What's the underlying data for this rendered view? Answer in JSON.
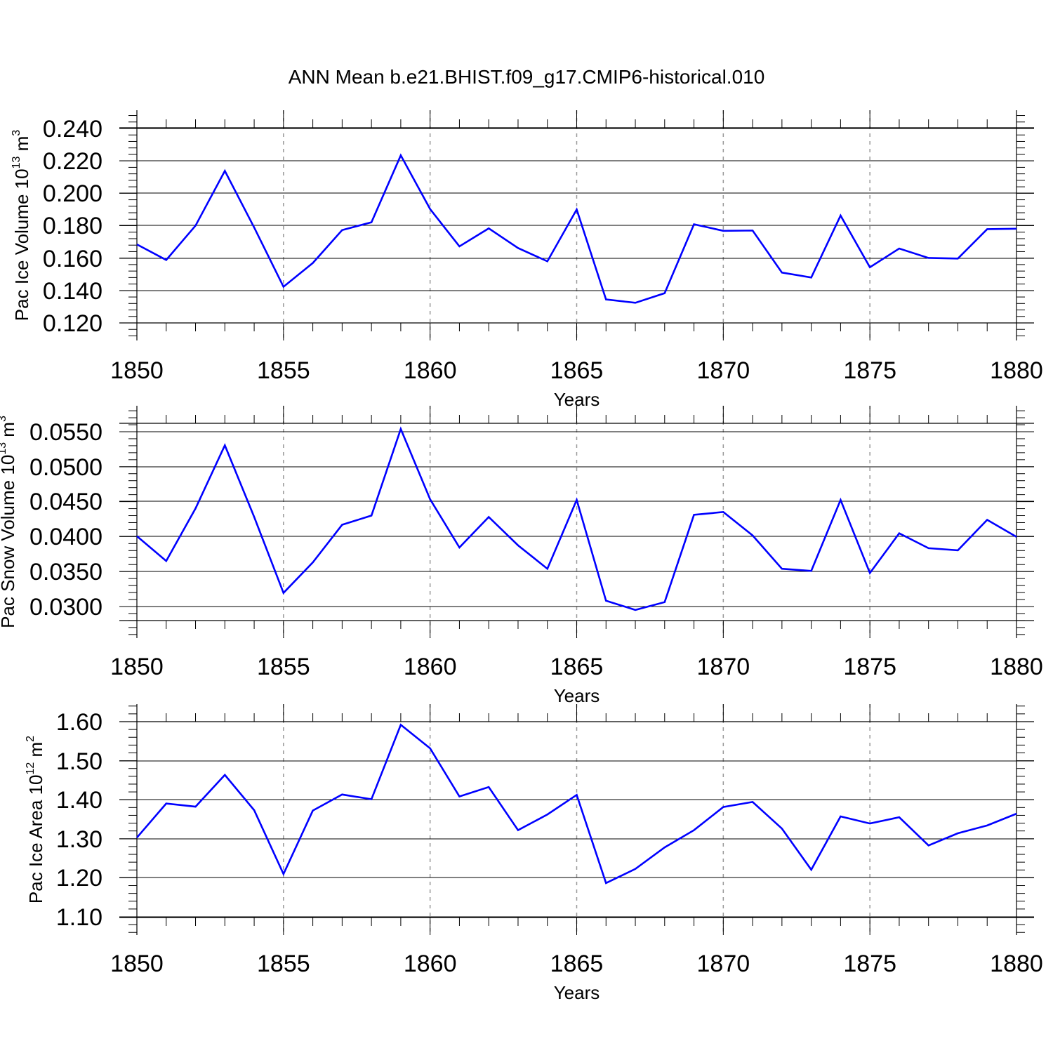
{
  "title": "ANN Mean b.e21.BHIST.f09_g17.CMIP6-historical.010",
  "line_color": "#0000ff",
  "chart_data": [
    {
      "type": "line",
      "xlabel": "Years",
      "ylabel": {
        "text": "Pac Ice Volume 10",
        "sup": "13",
        "unit": " m",
        "unit_sup": "3"
      },
      "xlim": [
        1850,
        1880
      ],
      "ylim": [
        0.114,
        0.242
      ],
      "xticks": [
        "1850",
        "1855",
        "1860",
        "1865",
        "1870",
        "1875",
        "1880"
      ],
      "yticks": [
        "0.120",
        "0.140",
        "0.160",
        "0.180",
        "0.200",
        "0.220",
        "0.240"
      ],
      "grid_x": "dashed at major ticks",
      "x": [
        1850,
        1851,
        1852,
        1853,
        1854,
        1855,
        1856,
        1857,
        1858,
        1859,
        1860,
        1861,
        1862,
        1863,
        1864,
        1865,
        1866,
        1867,
        1868,
        1869,
        1870,
        1871,
        1872,
        1873,
        1874,
        1875,
        1876,
        1877,
        1878,
        1879,
        1880
      ],
      "series": [
        {
          "values": [
            0.1655,
            0.1553,
            0.1778,
            0.2137,
            0.1766,
            0.1377,
            0.1533,
            0.1749,
            0.18,
            0.2239,
            0.1887,
            0.1642,
            0.176,
            0.1631,
            0.1544,
            0.1884,
            0.1294,
            0.1272,
            0.1335,
            0.1787,
            0.1744,
            0.1746,
            0.147,
            0.1438,
            0.1844,
            0.1505,
            0.1628,
            0.1566,
            0.1562,
            0.1755,
            0.1758
          ]
        }
      ]
    },
    {
      "type": "line",
      "xlabel": "Years",
      "ylabel": {
        "text": "Pac Snow Volume 10",
        "sup": "13",
        "unit": " m",
        "unit_sup": "3"
      },
      "xlim": [
        1850,
        1880
      ],
      "ylim": [
        0.0282,
        0.056
      ],
      "xticks": [
        "1850",
        "1855",
        "1860",
        "1865",
        "1870",
        "1875",
        "1880"
      ],
      "yticks": [
        "0.0300",
        "0.0350",
        "0.0400",
        "0.0450",
        "0.0500",
        "0.0550"
      ],
      "grid_x": "dashed at major ticks",
      "x": [
        1850,
        1851,
        1852,
        1853,
        1854,
        1855,
        1856,
        1857,
        1858,
        1859,
        1860,
        1861,
        1862,
        1863,
        1864,
        1865,
        1866,
        1867,
        1868,
        1869,
        1870,
        1871,
        1872,
        1873,
        1874,
        1875,
        1876,
        1877,
        1878,
        1879,
        1880
      ],
      "series": [
        {
          "values": [
            0.0401,
            0.0366,
            0.044,
            0.0529,
            0.0428,
            0.0321,
            0.0364,
            0.0417,
            0.043,
            0.0552,
            0.0453,
            0.0385,
            0.0428,
            0.0388,
            0.0355,
            0.0452,
            0.031,
            0.0297,
            0.0308,
            0.0431,
            0.0435,
            0.0402,
            0.0355,
            0.0352,
            0.0452,
            0.0349,
            0.0405,
            0.0384,
            0.0381,
            0.0424,
            0.04
          ]
        }
      ]
    },
    {
      "type": "line",
      "xlabel": "Years",
      "ylabel": {
        "text": "Pac Ice Area 10",
        "sup": "12",
        "unit": " m",
        "unit_sup": "2"
      },
      "xlim": [
        1850,
        1880
      ],
      "ylim": [
        1.1,
        1.6
      ],
      "xticks": [
        "1850",
        "1855",
        "1860",
        "1865",
        "1870",
        "1875",
        "1880"
      ],
      "yticks": [
        "1.10",
        "1.20",
        "1.30",
        "1.40",
        "1.50",
        "1.60"
      ],
      "grid_x": "dashed at major ticks",
      "x": [
        1850,
        1851,
        1852,
        1853,
        1854,
        1855,
        1856,
        1857,
        1858,
        1859,
        1860,
        1861,
        1862,
        1863,
        1864,
        1865,
        1866,
        1867,
        1868,
        1869,
        1870,
        1871,
        1872,
        1873,
        1874,
        1875,
        1876,
        1877,
        1878,
        1879,
        1880
      ],
      "series": [
        {
          "values": [
            1.304,
            1.391,
            1.383,
            1.464,
            1.374,
            1.211,
            1.373,
            1.414,
            1.402,
            1.592,
            1.532,
            1.409,
            1.433,
            1.323,
            1.363,
            1.413,
            1.188,
            1.224,
            1.279,
            1.323,
            1.382,
            1.395,
            1.327,
            1.222,
            1.358,
            1.34,
            1.356,
            1.284,
            1.315,
            1.335,
            1.365
          ]
        }
      ]
    }
  ]
}
